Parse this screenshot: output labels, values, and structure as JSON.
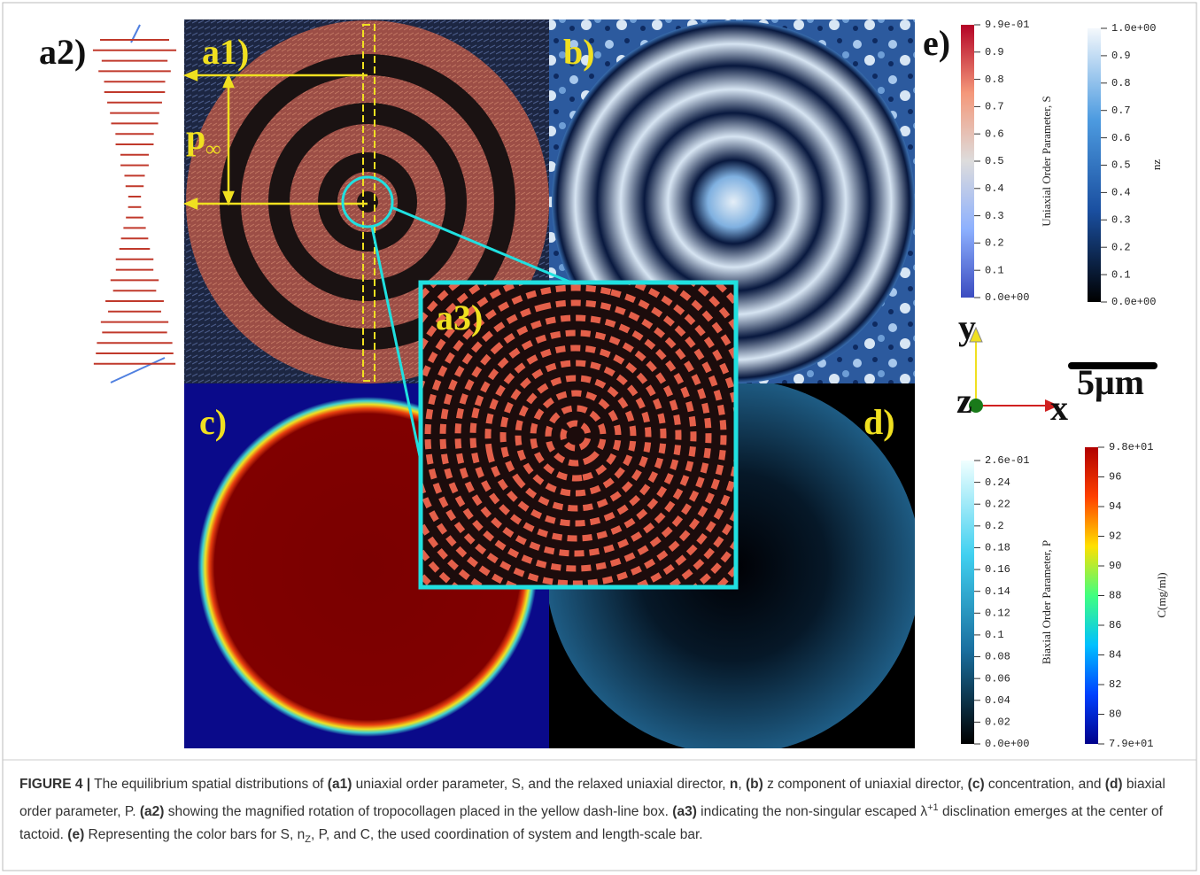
{
  "figure": {
    "labels": {
      "a1": "a1)",
      "a2": "a2)",
      "a3": "a3)",
      "b": "b)",
      "c": "c)",
      "d": "d)",
      "e": "e)"
    },
    "pitch": {
      "symbol": "p",
      "subscript": "∞"
    },
    "colorbars": [
      {
        "title": "Uniaxial Order Parameter, S",
        "colors": [
          "#b40426",
          "#f4987a",
          "#dddcdc",
          "#8db0fe",
          "#3b4cc0"
        ],
        "ticks": [
          "9.9e-01",
          "0.9",
          "0.8",
          "0.7",
          "0.6",
          "0.5",
          "0.4",
          "0.3",
          "0.2",
          "0.1",
          "0.0e+00"
        ]
      },
      {
        "title": "nz",
        "colors": [
          "#f4f8fc",
          "#4d9be0",
          "#1a4fa0",
          "#000000"
        ],
        "ticks": [
          "1.0e+00",
          "0.9",
          "0.8",
          "0.7",
          "0.6",
          "0.5",
          "0.4",
          "0.3",
          "0.2",
          "0.1",
          "0.0e+00"
        ]
      },
      {
        "title": "Biaxial Order Parameter, P",
        "colors": [
          "#f0ffff",
          "#40d0f0",
          "#1a70a0",
          "#000000"
        ],
        "ticks": [
          "2.6e-01",
          "0.24",
          "0.22",
          "0.2",
          "0.18",
          "0.16",
          "0.14",
          "0.12",
          "0.1",
          "0.08",
          "0.06",
          "0.04",
          "0.02",
          "0.0e+00"
        ]
      },
      {
        "title": "C(mg/ml)",
        "colors": [
          "#b00000",
          "#ff4000",
          "#ffe000",
          "#40ff80",
          "#00c0ff",
          "#0040ff",
          "#00008b"
        ],
        "ticks": [
          "9.8e+01",
          "96",
          "94",
          "92",
          "90",
          "88",
          "86",
          "84",
          "82",
          "80",
          "7.9e+01"
        ]
      }
    ],
    "axes": {
      "x": "x",
      "y": "y",
      "z": "z"
    },
    "scale_bar": "5μm"
  },
  "caption": {
    "parts": [
      "FIGURE 4 |",
      " The equilibrium spatial distributions of ",
      "(a1)",
      " uniaxial order parameter, S, and the relaxed uniaxial director, ",
      "n",
      ", ",
      "(b)",
      " z component of uniaxial director, ",
      "(c)",
      " concentration, and ",
      "(d)",
      " biaxial order parameter, P. ",
      "(a2)",
      " showing the magnified rotation of tropocollagen placed in the yellow dash-line box. ",
      "(a3)",
      " indicating the non-singular escaped λ",
      "+1",
      " disclination emerges at the center of tactoid. ",
      "(e)",
      " Representing the color bars for S, n",
      "Z",
      ", P, and C, the used coordination of system and length-scale bar."
    ]
  }
}
